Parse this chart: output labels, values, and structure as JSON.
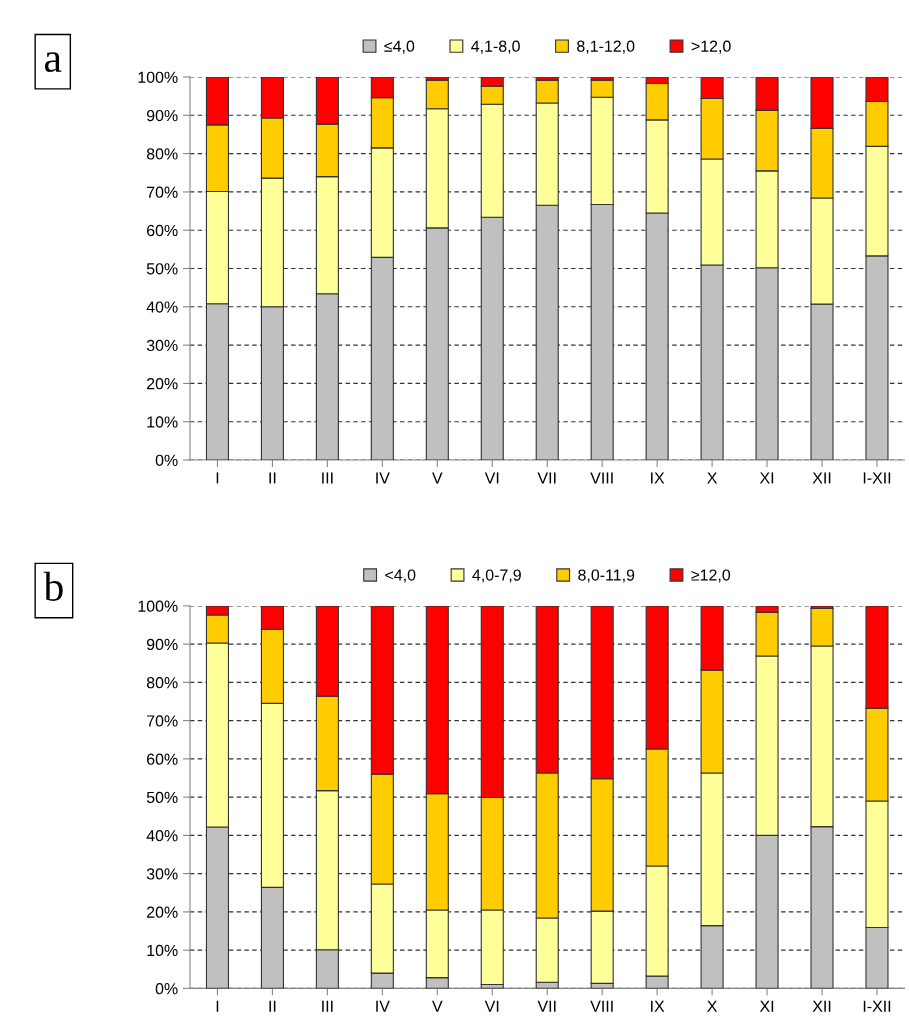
{
  "chart_data": [
    {
      "type": "bar",
      "stacked": true,
      "title": "a",
      "categories": [
        "I",
        "II",
        "III",
        "IV",
        "V",
        "VI",
        "VII",
        "VIII",
        "IX",
        "X",
        "XI",
        "XII",
        "I-XII"
      ],
      "series": [
        {
          "name": "≤4,0",
          "color": "#c0c0c0",
          "values": [
            40.8,
            40.0,
            43.4,
            52.9,
            60.6,
            63.4,
            66.5,
            66.7,
            64.5,
            50.9,
            50.2,
            40.7,
            53.3
          ]
        },
        {
          "name": "4,1-8,0",
          "color": "#ffff99",
          "values": [
            29.3,
            33.6,
            30.6,
            28.6,
            31.1,
            29.5,
            26.7,
            28.0,
            24.3,
            27.7,
            25.3,
            27.7,
            28.6
          ]
        },
        {
          "name": "8,1-12,0",
          "color": "#ffcc00",
          "values": [
            17.4,
            15.7,
            13.7,
            13.1,
            7.5,
            4.7,
            6.0,
            4.5,
            9.5,
            15.8,
            15.8,
            18.2,
            11.7
          ]
        },
        {
          "name": ">12,0",
          "color": "#ff0000",
          "values": [
            12.5,
            10.7,
            12.3,
            5.4,
            0.8,
            2.4,
            0.8,
            0.8,
            1.7,
            5.6,
            8.7,
            13.4,
            6.4
          ]
        }
      ],
      "ylim": [
        0,
        100
      ],
      "yticks": [
        {
          "value": 0,
          "label": "0%"
        },
        {
          "value": 10,
          "label": "10%"
        },
        {
          "value": 20,
          "label": "20%"
        },
        {
          "value": 30,
          "label": "30%"
        },
        {
          "value": 40,
          "label": "40%"
        },
        {
          "value": 50,
          "label": "50%"
        },
        {
          "value": 60,
          "label": "60%"
        },
        {
          "value": 70,
          "label": "70%"
        },
        {
          "value": 80,
          "label": "80%"
        },
        {
          "value": 90,
          "label": "90%"
        },
        {
          "value": 100,
          "label": "100%"
        }
      ],
      "grid": "y",
      "legend": "top"
    },
    {
      "type": "bar",
      "stacked": true,
      "title": "b",
      "categories": [
        "I",
        "II",
        "III",
        "IV",
        "V",
        "VI",
        "VII",
        "VIII",
        "IX",
        "X",
        "XI",
        "XII",
        "I-XII"
      ],
      "series": [
        {
          "name": "<4,0",
          "color": "#c0c0c0",
          "values": [
            42.2,
            26.4,
            10.1,
            4.0,
            2.8,
            1.0,
            1.6,
            1.3,
            3.2,
            16.4,
            40.0,
            42.3,
            15.9
          ]
        },
        {
          "name": "4,0-7,9",
          "color": "#ffff99",
          "values": [
            48.1,
            48.1,
            41.6,
            23.3,
            17.7,
            19.5,
            16.8,
            18.9,
            28.8,
            39.9,
            46.9,
            47.2,
            33.1
          ]
        },
        {
          "name": "8,0-11,9",
          "color": "#ffcc00",
          "values": [
            7.3,
            19.4,
            24.7,
            28.7,
            30.4,
            29.4,
            37.9,
            34.6,
            30.6,
            26.9,
            11.4,
            9.8,
            24.2
          ]
        },
        {
          "name": "≥12,0",
          "color": "#ff0000",
          "values": [
            2.4,
            6.1,
            23.6,
            44.0,
            49.1,
            50.1,
            43.7,
            45.2,
            37.4,
            16.8,
            1.7,
            0.7,
            26.8
          ]
        }
      ],
      "ylim": [
        0,
        100
      ],
      "yticks": [
        {
          "value": 0,
          "label": "0%"
        },
        {
          "value": 10,
          "label": "10%"
        },
        {
          "value": 20,
          "label": "20%"
        },
        {
          "value": 30,
          "label": "30%"
        },
        {
          "value": 40,
          "label": "40%"
        },
        {
          "value": 50,
          "label": "50%"
        },
        {
          "value": 60,
          "label": "60%"
        },
        {
          "value": 70,
          "label": "70%"
        },
        {
          "value": 80,
          "label": "80%"
        },
        {
          "value": 90,
          "label": "90%"
        },
        {
          "value": 100,
          "label": "100%"
        }
      ],
      "grid": "y",
      "legend": "top"
    }
  ]
}
